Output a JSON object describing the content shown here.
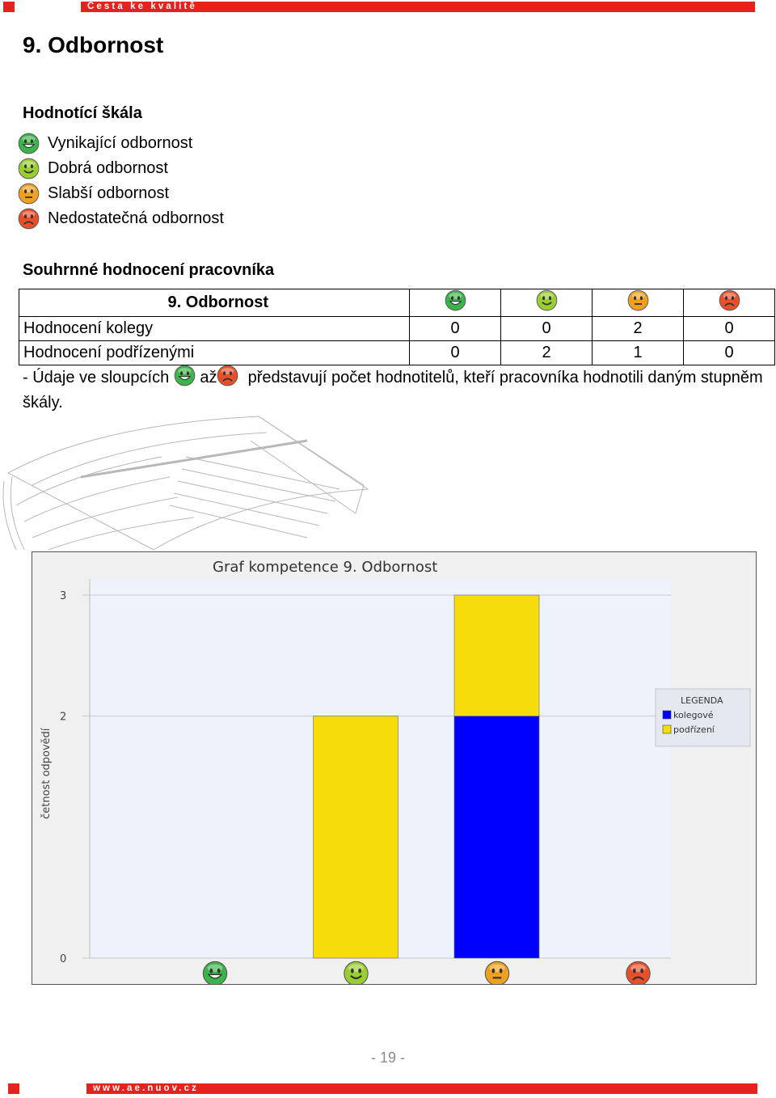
{
  "header": {
    "tagline": "Cesta ke kvalitě"
  },
  "page_title": "9. Odbornost",
  "scale": {
    "heading": "Hodnotící škála",
    "items": [
      {
        "icon": "grin-face-icon",
        "color": "#3cb44a",
        "label": "Vynikající odbornost"
      },
      {
        "icon": "smile-face-icon",
        "color": "#9acd32",
        "label": "Dobrá odbornost"
      },
      {
        "icon": "neutral-face-icon",
        "color": "#f0a020",
        "label": "Slabší odbornost"
      },
      {
        "icon": "sad-face-icon",
        "color": "#e8502a",
        "label": "Nedostatečná odbornost"
      }
    ]
  },
  "summary": {
    "heading": "Souhrnné hodnocení pracovníka",
    "table_title": "9. Odbornost",
    "rows": [
      {
        "label": "Hodnocení kolegy",
        "values": [
          "0",
          "0",
          "2",
          "0"
        ]
      },
      {
        "label": "Hodnocení podřízenými",
        "values": [
          "0",
          "2",
          "1",
          "0"
        ]
      }
    ],
    "note_prefix": "- Údaje ve sloupcích",
    "note_mid": "až",
    "note_suffix": "představují počet hodnotitelů, kteří pracovníka hodnotili daným stupněm škály."
  },
  "chart_data": {
    "type": "bar",
    "stacked": true,
    "title": "Graf kompetence 9. Odbornost",
    "ylabel": "četnost odpovědí",
    "xlabel": "",
    "categories": [
      "grin-face-icon",
      "smile-face-icon",
      "neutral-face-icon",
      "sad-face-icon"
    ],
    "yticks": [
      0,
      2,
      3
    ],
    "ylim": [
      0,
      3
    ],
    "series": [
      {
        "name": "kolegové",
        "color": "#0000ff",
        "values": [
          0,
          0,
          2,
          0
        ]
      },
      {
        "name": "podřízení",
        "color": "#f5dc0a",
        "values": [
          0,
          2,
          1,
          0
        ]
      }
    ],
    "legend": {
      "title": "LEGENDA",
      "position": "right"
    },
    "grid": true
  },
  "footer": {
    "page_number": "- 19 -",
    "url": "www.ae.nuov.cz"
  }
}
